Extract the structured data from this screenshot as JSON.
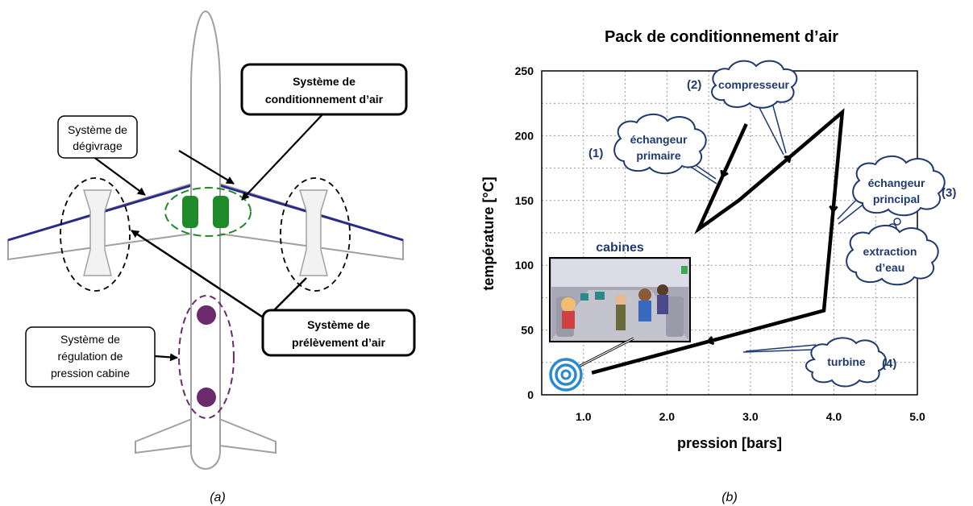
{
  "panel_a": {
    "caption": "(a)",
    "labels": {
      "degivrage_1": "Système de",
      "degivrage_2": "dégivrage",
      "conditionnement_1": "Système de",
      "conditionnement_2": "conditionnement d’air",
      "prelevement_1": "Système de",
      "prelevement_2": "prélèvement d’air",
      "regulation_1": "Système de",
      "regulation_2": "régulation de",
      "regulation_3": "pression cabine"
    },
    "colors": {
      "wing_edge": "#2a2a8a",
      "pack": "#1f8a2a",
      "outflow_valve": "#6b2a6b",
      "outline": "#a0a0a0"
    }
  },
  "panel_b": {
    "caption": "(b)",
    "clouds": {
      "compresseur": "compresseur",
      "echangeur_primaire_1": "échangeur",
      "echangeur_primaire_2": "primaire",
      "echangeur_principal_1": "échangeur",
      "echangeur_principal_2": "principal",
      "extraction_1": "extraction",
      "extraction_2": "d’eau",
      "turbine": "turbine",
      "cabines": "cabines"
    },
    "steps": {
      "s1": "(1)",
      "s2": "(2)",
      "s3": "(3)",
      "s4": "(4)"
    }
  },
  "chart_data": {
    "type": "line",
    "title": "Pack de conditionnement d’air",
    "xlabel": "pression [bars]",
    "ylabel": "température [°C]",
    "xlim": [
      0.5,
      5.0
    ],
    "ylim": [
      0,
      250
    ],
    "x_ticks": [
      "1.0",
      "2.0",
      "3.0",
      "4.0",
      "5.0"
    ],
    "y_ticks": [
      "0",
      "50",
      "100",
      "150",
      "200",
      "250"
    ],
    "grid": true,
    "series": [
      {
        "x": [
          2.95,
          2.38,
          2.86,
          4.1,
          3.88,
          1.1
        ],
        "y": [
          209,
          128,
          150,
          218,
          65,
          17
        ]
      }
    ]
  }
}
